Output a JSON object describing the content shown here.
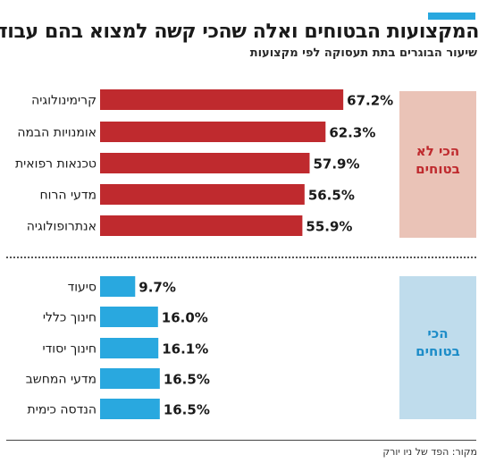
{
  "header": {
    "title": "המקצועות הבטוחים ואלה שהכי קשה למצוא בהם עבודה",
    "subtitle": "שיעור הבוגרים בתת תעסוקה לפי מקצועות",
    "accent_color": "#29a8df"
  },
  "footer": {
    "source": "מקור: הפד של ניו יורק"
  },
  "chart_data": [
    {
      "type": "bar",
      "orientation": "horizontal",
      "group_label": "הכי לא\nבטוחים",
      "group_label_lines": [
        "הכי לא",
        "בטוחים"
      ],
      "bar_color": "#bf2a2e",
      "panel_color": "#eac3b7",
      "label_color": "#bf2a2e",
      "categories": [
        "קרימינולוגיה",
        "אומנויות הבמה",
        "טכנאות רפואית",
        "מדעי הרוח",
        "אנתרופולוגיה"
      ],
      "values": [
        67.2,
        62.3,
        57.9,
        56.5,
        55.9
      ],
      "value_labels": [
        "67.2%",
        "62.3%",
        "57.9%",
        "56.5%",
        "55.9%"
      ],
      "xlim": [
        0,
        100
      ]
    },
    {
      "type": "bar",
      "orientation": "horizontal",
      "group_label": "הכי\nבטוחים",
      "group_label_lines": [
        "הכי",
        "בטוחים"
      ],
      "bar_color": "#29a8df",
      "panel_color": "#bfdcec",
      "label_color": "#1c8cc8",
      "categories": [
        "סיעוד",
        "חינוך כללי",
        "חינוך יסודי",
        "מדעי המחשב",
        "הנדסה כימית"
      ],
      "values": [
        9.7,
        16.0,
        16.1,
        16.5,
        16.5
      ],
      "value_labels": [
        "9.7%",
        "16.0%",
        "16.1%",
        "16.5%",
        "16.5%"
      ],
      "xlim": [
        0,
        100
      ]
    }
  ]
}
